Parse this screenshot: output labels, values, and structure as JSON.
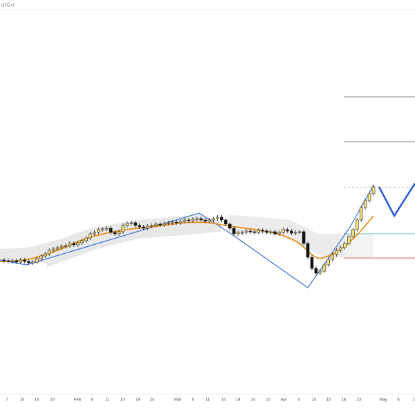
{
  "header": {
    "timezone": "UTC+7"
  },
  "time_axis": {
    "labels": [
      "7",
      "10",
      "15",
      "20",
      "Feb",
      "6",
      "11",
      "14",
      "19",
      "24",
      "Mar",
      "6",
      "11",
      "14",
      "19",
      "24",
      "27",
      "Apr",
      "4",
      "10",
      "15",
      "18",
      "23",
      "May",
      "8",
      "1"
    ]
  }
}
